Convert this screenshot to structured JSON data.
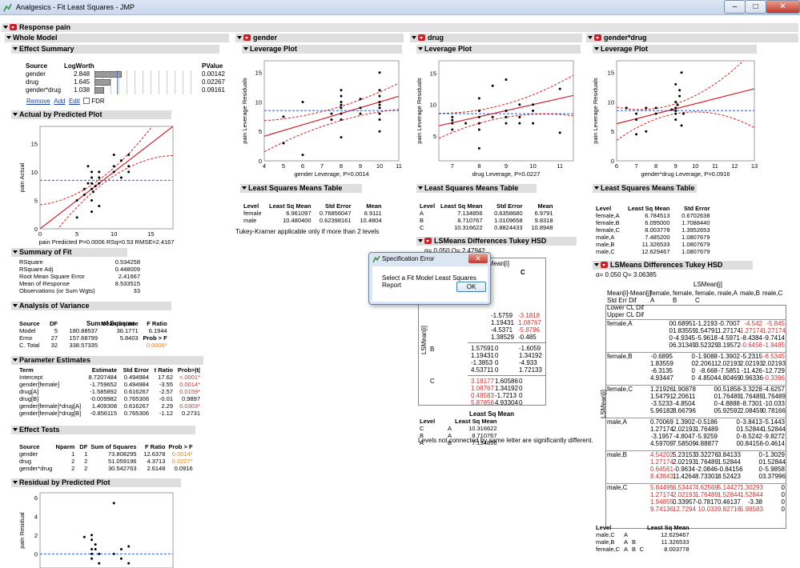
{
  "window": {
    "title": "Analgesics - Fit Least Squares - JMP",
    "min": "–",
    "max": "□",
    "close": "✕"
  },
  "report": {
    "response_title": "Response pain"
  },
  "whole_model": {
    "title": "Whole Model",
    "effect_summary": {
      "title": "Effect Summary",
      "headers": [
        "Source",
        "LogWorth",
        "PValue"
      ],
      "rows": [
        {
          "source": "gender",
          "logworth": "2.848",
          "pvalue": "0.00142",
          "bar": 0.85
        },
        {
          "source": "drug",
          "logworth": "1.645",
          "pvalue": "0.02267",
          "bar": 0.49
        },
        {
          "source": "gender*drug",
          "logworth": "1.038",
          "pvalue": "0.09161",
          "bar": 0.31
        }
      ],
      "links": [
        "Remove",
        "Add",
        "Edit"
      ],
      "fdr": "FDR"
    },
    "actual_by_predicted": {
      "title": "Actual by Predicted Plot",
      "ylabel": "pain Actual",
      "xlabel": "pain Predicted P=0.0006 RSq=0.53 RMSE=2.4167",
      "xticks": [
        "0",
        "5",
        "10",
        "15"
      ],
      "yticks": [
        "0",
        "5",
        "10",
        "15"
      ]
    },
    "summary_of_fit": {
      "title": "Summary of Fit",
      "rows": [
        [
          "RSquare",
          "0.534258"
        ],
        [
          "RSquare Adj",
          "0.448009"
        ],
        [
          "Root Mean Square Error",
          "2.41667"
        ],
        [
          "Mean of Response",
          "8.533515"
        ],
        [
          "Observations (or Sum Wgts)",
          "33"
        ]
      ]
    },
    "anova": {
      "title": "Analysis of Variance",
      "headers": [
        "Source",
        "DF",
        "Sum of Squares",
        "Mean Square",
        "F Ratio"
      ],
      "rows": [
        [
          "Model",
          "5",
          "180.88537",
          "36.1771",
          "6.1944"
        ],
        [
          "Error",
          "27",
          "157.68799",
          "5.8403",
          "Prob > F"
        ],
        [
          "C. Total",
          "32",
          "338.57335",
          "",
          "0.0006*"
        ]
      ]
    },
    "parameter_estimates": {
      "title": "Parameter Estimates",
      "headers": [
        "Term",
        "Estimate",
        "Std Error",
        "t Ratio",
        "Prob>|t|"
      ],
      "rows": [
        [
          "Intercept",
          "8.7207484",
          "0.494984",
          "17.62",
          "<.0001*"
        ],
        [
          "gender[female]",
          "-1.759652",
          "0.494984",
          "-3.55",
          "0.0014*"
        ],
        [
          "drug[A]",
          "-1.585892",
          "0.616267",
          "-2.57",
          "0.0159*"
        ],
        [
          "drug[B]",
          "-0.009982",
          "0.765306",
          "-0.01",
          "0.9897"
        ],
        [
          "gender[female]*drug[A]",
          "1.409308",
          "0.616267",
          "2.29",
          "0.0303*"
        ],
        [
          "gender[female]*drug[B]",
          "-0.856115",
          "0.765306",
          "-1.12",
          "0.2731"
        ]
      ]
    },
    "effect_tests": {
      "title": "Effect Tests",
      "headers": [
        "Source",
        "Nparm",
        "DF",
        "Sum of Squares",
        "F Ratio",
        "Prob > F"
      ],
      "rows": [
        [
          "gender",
          "1",
          "1",
          "73.808295",
          "12.6378",
          "0.0014*"
        ],
        [
          "drug",
          "2",
          "2",
          "51.059196",
          "4.3713",
          "0.0227*"
        ],
        [
          "gender*drug",
          "2",
          "2",
          "30.542763",
          "2.6148",
          "0.0916"
        ]
      ]
    },
    "residual_by_predicted": {
      "title": "Residual by Predicted Plot",
      "ylabel": "pain Residual",
      "yticks": [
        "6",
        "4",
        "2",
        "0"
      ]
    }
  },
  "gender": {
    "title": "gender",
    "leverage": {
      "title": "Leverage Plot",
      "ylabel": "pain Leverage Residuals",
      "xlabel": "gender Leverage, P=0.0014",
      "xticks": [
        "4",
        "5",
        "6",
        "7",
        "8",
        "9",
        "10",
        "11"
      ],
      "yticks": [
        "0",
        "5",
        "10",
        "15"
      ]
    },
    "lsm": {
      "title": "Least Squares Means Table",
      "headers": [
        "Level",
        "Least Sq Mean",
        "Std Error",
        "Mean"
      ],
      "rows": [
        [
          "female",
          "6.961097",
          "0.76856047",
          "6.9111"
        ],
        [
          "male",
          "10.480400",
          "0.62398161",
          "10.4804"
        ]
      ]
    },
    "note": "Tukey-Kramer applicable only if more than 2 levels"
  },
  "drug": {
    "title": "drug",
    "leverage": {
      "title": "Leverage Plot",
      "ylabel": "pain Leverage Residuals",
      "xlabel": "drug Leverage, P=0.0227",
      "xticks": [
        "7",
        "8",
        "9",
        "10",
        "11"
      ],
      "yticks": [
        "5",
        "10",
        "15"
      ]
    },
    "lsm": {
      "title": "Least Squares Means Table",
      "headers": [
        "Level",
        "Least Sq Mean",
        "Std Error",
        "Mean"
      ],
      "rows": [
        [
          "A",
          "7.134856",
          "0.6358680",
          "6.9791"
        ],
        [
          "B",
          "8.710767",
          "1.0109658",
          "9.8318"
        ],
        [
          "C",
          "10.316622",
          "0.8824433",
          "10.8948"
        ]
      ]
    },
    "tukey": {
      "title": "LSMeans Differences Tukey HSD",
      "alpha": "α= 0.050   Q= 2.47942",
      "corner": "LSMean[i]",
      "col_c": "C",
      "side": "LSMean[i]",
      "rowlabels": [
        "B",
        "C"
      ],
      "rowsA": [
        [
          "-1.5759",
          "-3.1818"
        ],
        [
          "1.19431",
          "1.08767"
        ],
        [
          "-4.5371",
          "-5.8786"
        ],
        [
          "1.38529",
          "-0.485"
        ]
      ],
      "rowsB": [
        [
          "1.57591",
          "0",
          "-1.6059"
        ],
        [
          "1.19431",
          "0",
          "1.34192"
        ],
        [
          "-1.3853",
          "0",
          "-4.933"
        ],
        [
          "4.53711",
          "0",
          "1.72133"
        ]
      ],
      "rowsC": [
        [
          "3.18177",
          "1.60586",
          "0"
        ],
        [
          "1.08767",
          "1.34192",
          "0"
        ],
        [
          "0.48583",
          "-1.7213",
          "0"
        ],
        [
          "5.87856",
          "4.93304",
          "0"
        ]
      ]
    },
    "letters": {
      "headers": [
        "Level",
        "",
        "Least Sq Mean"
      ],
      "rows": [
        [
          "C",
          "A",
          "10.316622"
        ],
        [
          "B",
          "A",
          "8.710767"
        ],
        [
          "A",
          "B",
          "7.134856"
        ]
      ],
      "note": "Levels not connected by same letter are significantly different."
    }
  },
  "gender_drug": {
    "title": "gender*drug",
    "leverage": {
      "title": "Leverage Plot",
      "ylabel": "pain Leverage Residuals",
      "xlabel": "gender*drug Leverage, P=0.0916",
      "xticks": [
        "6",
        "7",
        "8",
        "9",
        "10",
        "11",
        "12",
        "13"
      ],
      "yticks": [
        "0",
        "5",
        "10",
        "15"
      ]
    },
    "lsm": {
      "title": "Least Squares Means Table",
      "headers": [
        "Level",
        "Least Sq Mean",
        "Std Error"
      ],
      "rows": [
        [
          "female,A",
          "6.784513",
          "0.6702638"
        ],
        [
          "female,B",
          "6.095000",
          "1.7088440"
        ],
        [
          "female,C",
          "8.003778",
          "1.3952653"
        ],
        [
          "male,A",
          "7.485200",
          "1.0807679"
        ],
        [
          "male,B",
          "11.326533",
          "1.0807679"
        ],
        [
          "male,C",
          "12.629467",
          "1.0807679"
        ]
      ]
    },
    "tukey": {
      "title": "LSMeans Differences Tukey HSD",
      "alpha": "α= 0.050   Q= 3.06385",
      "colhdr": "LSMean[j]",
      "side": "LSMean[i]",
      "head": [
        "Mean[i]-Mean[j]",
        "Std Err Dif",
        "Lower CL Dif",
        "Upper CL Dif"
      ],
      "cols": [
        "female, A",
        "female, B",
        "female, C",
        "male,A",
        "male,B",
        "male,C"
      ],
      "rows": [
        {
          "label": "female,A",
          "cells": [
            [
              "0",
              "0.68951",
              "-1.2193",
              "-0.7007",
              "-4.542",
              "-5.845"
            ],
            [
              "0",
              "1.83559",
              "1.54791",
              "1.27174",
              "1.27174",
              "1.27174"
            ],
            [
              "0",
              "-4.9345",
              "-5.9618",
              "-4.5971",
              "-8.4384",
              "-9.7414"
            ],
            [
              "0",
              "6.31349",
              "3.52329",
              "3.19572",
              "-0.6456",
              "-1.9485"
            ]
          ]
        },
        {
          "label": "female,B",
          "cells": [
            [
              "-0.6895",
              "0",
              "-1.9088",
              "-1.3902",
              "-5.2315",
              "-6.5345"
            ],
            [
              "1.83559",
              "0",
              "2.20611",
              "2.02193",
              "2.02193",
              "2.02193"
            ],
            [
              "-6.3135",
              "0",
              "-8.668",
              "-7.5851",
              "-11.426",
              "-12.729"
            ],
            [
              "4.93447",
              "0",
              "4.8504",
              "4.80469",
              "0.96336",
              "-0.3396"
            ]
          ]
        },
        {
          "label": "female,C",
          "cells": [
            [
              "1.21926",
              "1.90878",
              "0",
              "0.51858",
              "-3.3228",
              "-4.6257"
            ],
            [
              "1.54791",
              "2.20611",
              "0",
              "1.76489",
              "1.76489",
              "1.76489"
            ],
            [
              "-3.5233",
              "-4.8504",
              "0",
              "-4.8888",
              "-8.7301",
              "-10.033"
            ],
            [
              "5.96182",
              "8.66796",
              "0",
              "5.92592",
              "2.08459",
              "0.78166"
            ]
          ]
        },
        {
          "label": "male,A",
          "cells": [
            [
              "0.70069",
              "1.3902",
              "-0.5186",
              "0",
              "-3.8413",
              "-5.1443"
            ],
            [
              "1.27174",
              "2.02193",
              "1.76489",
              "0",
              "1.52844",
              "1.52844"
            ],
            [
              "-3.1957",
              "-4.8047",
              "-5.9259",
              "0",
              "-8.5242",
              "-9.8272"
            ],
            [
              "4.59709",
              "7.58509",
              "4.88877",
              "0",
              "0.84156",
              "-0.4614"
            ]
          ]
        },
        {
          "label": "male,B",
          "cells": [
            [
              "4.54202",
              "5.23153",
              "3.32276",
              "3.84133",
              "0",
              "-1.3029"
            ],
            [
              "1.27174",
              "2.02193",
              "1.76489",
              "1.52844",
              "0",
              "1.52844"
            ],
            [
              "0.64561",
              "-0.9634",
              "-2.0846",
              "-0.84156",
              "0",
              "-5.9858"
            ],
            [
              "8.43843",
              "11.4264",
              "8.73301",
              "8.52423",
              "0",
              "3.37996"
            ]
          ]
        },
        {
          "label": "male,C",
          "cells": [
            [
              "5.84495",
              "6.53447",
              "4.62569",
              "5.14427",
              "1.30293",
              "0"
            ],
            [
              "1.27174",
              "2.02193",
              "1.76489",
              "1.52844",
              "1.52844",
              "0"
            ],
            [
              "1.94855",
              "0.33957",
              "-0.7817",
              "0.46137",
              "-3.38",
              "0"
            ],
            [
              "9.74136",
              "12.7294",
              "10.033",
              "9.82716",
              "5.98583",
              "0"
            ]
          ]
        }
      ]
    },
    "letters": {
      "headers": [
        "Level",
        "",
        "",
        "",
        "Least Sq Mean"
      ],
      "rows": [
        [
          "male,C",
          "A",
          "",
          "",
          "12.629467"
        ],
        [
          "male,B",
          "A",
          "B",
          "",
          "11.326533"
        ],
        [
          "female,C",
          "A",
          "B",
          "C",
          "8.003778"
        ]
      ]
    }
  },
  "dialog": {
    "title": "Specification Error",
    "message": "Select a Fit Model Least Squares Report",
    "ok": "OK",
    "close": "✕"
  }
}
